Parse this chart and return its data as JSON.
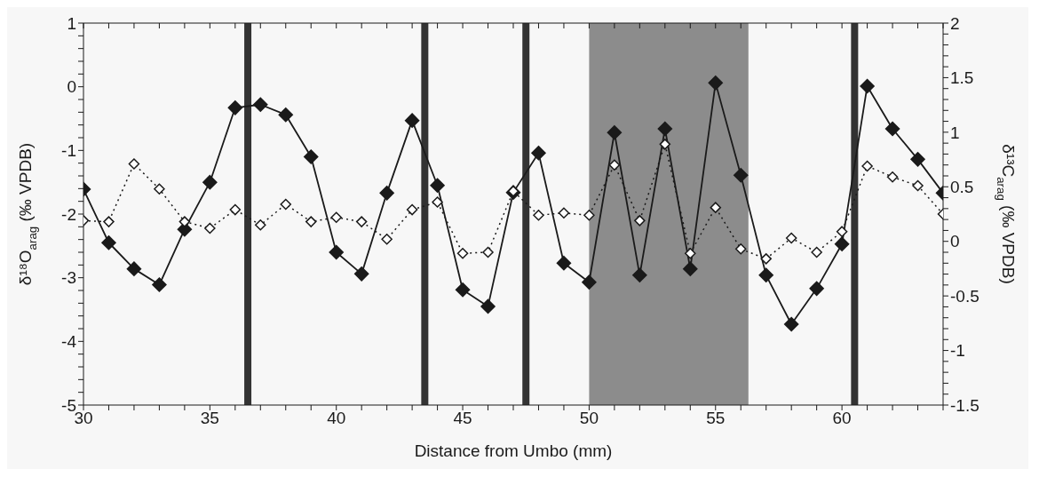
{
  "chart_data": {
    "type": "line",
    "xlabel": "Distance from Umbo (mm)",
    "ylabel": "δ¹⁸O$_{arag}$ (‰ VPDB)",
    "y2label": "δ¹³C$_{arag}$ (‰ VPDB)",
    "x": [
      30,
      31,
      32,
      33,
      34,
      35,
      36,
      37,
      38,
      39,
      40,
      41,
      42,
      43,
      44,
      45,
      46,
      47,
      48,
      49,
      50,
      51,
      52,
      53,
      54,
      55,
      56,
      57,
      58,
      59,
      60,
      61,
      62,
      63,
      64
    ],
    "series": [
      {
        "color": "#1a1a1a",
        "line_style": "solid",
        "values": [
          -1.61,
          -2.45,
          -2.86,
          -3.11,
          -2.24,
          -1.5,
          -0.33,
          -0.28,
          -0.44,
          -1.1,
          -2.6,
          -2.94,
          -1.67,
          -0.53,
          -1.55,
          -3.19,
          -3.45,
          -1.66,
          -1.04,
          -2.77,
          -3.07,
          -0.72,
          -2.96,
          -0.66,
          -2.86,
          0.06,
          -1.39,
          -2.96,
          -3.73,
          -3.17,
          -2.47,
          0.01,
          -0.66,
          -1.14,
          -1.67
        ]
      },
      {
        "color": "#1a1a1a",
        "line_style": "dotted",
        "axis": "y2",
        "values": [
          0.19,
          0.18,
          0.71,
          0.48,
          0.18,
          0.12,
          0.29,
          0.15,
          0.34,
          0.18,
          0.22,
          0.18,
          0.02,
          0.29,
          0.36,
          -0.11,
          -0.1,
          0.46,
          0.24,
          0.26,
          0.24,
          0.7,
          0.19,
          0.89,
          -0.11,
          0.31,
          -0.07,
          -0.16,
          0.03,
          -0.1,
          0.09,
          0.69,
          0.59,
          0.51,
          0.25
        ]
      }
    ],
    "marker": "diamond",
    "grid": false,
    "legend": false,
    "xlim": [
      30,
      64
    ],
    "xticks": [
      30,
      {
        "value": 31,
        "label": null
      },
      {
        "value": 32,
        "label": null
      },
      {
        "value": 33,
        "label": null
      },
      {
        "value": 34,
        "label": null
      },
      35,
      {
        "value": 36,
        "label": null
      },
      {
        "value": 37,
        "label": null
      },
      {
        "value": 38,
        "label": null
      },
      {
        "value": 39,
        "label": null
      },
      40,
      {
        "value": 41,
        "label": null
      },
      {
        "value": 42,
        "label": null
      },
      {
        "value": 43,
        "label": null
      },
      {
        "value": 44,
        "label": null
      },
      45,
      {
        "value": 46,
        "label": null
      },
      {
        "value": 47,
        "label": null
      },
      {
        "value": 48,
        "label": null
      },
      {
        "value": 49,
        "label": null
      },
      50,
      {
        "value": 51,
        "label": null
      },
      {
        "value": 52,
        "label": null
      },
      {
        "value": 53,
        "label": null
      },
      {
        "value": 54,
        "label": null
      },
      55,
      {
        "value": 56,
        "label": null
      },
      {
        "value": 57,
        "label": null
      },
      {
        "value": 58,
        "label": null
      },
      {
        "value": 59,
        "label": null
      },
      60,
      {
        "value": 61,
        "label": null
      },
      {
        "value": 62,
        "label": null
      },
      {
        "value": 63,
        "label": null
      },
      {
        "value": 64,
        "label": null
      }
    ],
    "ylim": [
      -5,
      1
    ],
    "yticks": [
      -5,
      {
        "value": -4.8,
        "label": null
      },
      {
        "value": -4.6,
        "label": null
      },
      {
        "value": -4.4,
        "label": null
      },
      {
        "value": -4.2,
        "label": null
      },
      -4,
      {
        "value": -3.8,
        "label": null
      },
      {
        "value": -3.6,
        "label": null
      },
      {
        "value": -3.4,
        "label": null
      },
      {
        "value": -3.2,
        "label": null
      },
      -3,
      {
        "value": -2.8,
        "label": null
      },
      {
        "value": -2.6,
        "label": null
      },
      {
        "value": -2.4,
        "label": null
      },
      {
        "value": -2.2,
        "label": null
      },
      -2,
      {
        "value": -1.8,
        "label": null
      },
      {
        "value": -1.6,
        "label": null
      },
      {
        "value": -1.4,
        "label": null
      },
      {
        "value": -1.2,
        "label": null
      },
      -1,
      {
        "value": -0.8,
        "label": null
      },
      {
        "value": -0.6,
        "label": null
      },
      {
        "value": -0.4,
        "label": null
      },
      {
        "value": -0.2,
        "label": null
      },
      0,
      {
        "value": 0.2,
        "label": null
      },
      {
        "value": 0.4,
        "label": null
      },
      {
        "value": 0.6,
        "label": null
      },
      {
        "value": 0.8,
        "label": null
      },
      1
    ],
    "y2lim": [
      -1.5,
      2
    ],
    "y2ticks": [
      -1.5,
      {
        "value": -1.4,
        "label": null
      },
      {
        "value": -1.3,
        "label": null
      },
      {
        "value": -1.2,
        "label": null
      },
      {
        "value": -1.1,
        "label": null
      },
      -1,
      {
        "value": -0.9,
        "label": null
      },
      {
        "value": -0.8,
        "label": null
      },
      {
        "value": -0.7,
        "label": null
      },
      {
        "value": -0.6,
        "label": null
      },
      -0.5,
      {
        "value": -0.4,
        "label": null
      },
      {
        "value": -0.3,
        "label": null
      },
      {
        "value": -0.2,
        "label": null
      },
      {
        "value": -0.1,
        "label": null
      },
      0,
      {
        "value": 0.1,
        "label": null
      },
      {
        "value": 0.2,
        "label": null
      },
      {
        "value": 0.3,
        "label": null
      },
      {
        "value": 0.4,
        "label": null
      },
      0.5,
      {
        "value": 0.6,
        "label": null
      },
      {
        "value": 0.7,
        "label": null
      },
      {
        "value": 0.8,
        "label": null
      },
      {
        "value": 0.9,
        "label": null
      },
      1,
      {
        "value": 1.1,
        "label": null
      },
      {
        "value": 1.2,
        "label": null
      },
      {
        "value": 1.3,
        "label": null
      },
      {
        "value": 1.4,
        "label": null
      },
      1.5,
      {
        "value": 1.6,
        "label": null
      },
      {
        "value": 1.7,
        "label": null
      },
      {
        "value": 1.8,
        "label": null
      },
      {
        "value": 1.9,
        "label": null
      },
      2
    ],
    "ref_lines": [
      {
        "axis": "x",
        "value": 36.5,
        "color": "#333333"
      },
      {
        "axis": "x",
        "value": 43.5,
        "color": "#333333"
      },
      {
        "axis": "x",
        "value": 47.5,
        "color": "#333333"
      },
      {
        "axis": "x",
        "value": 60.5,
        "color": "#333333"
      }
    ],
    "bands": [
      {
        "axis": "x",
        "from": 50,
        "to": 56.3,
        "color": "#8c8c8c"
      }
    ]
  }
}
